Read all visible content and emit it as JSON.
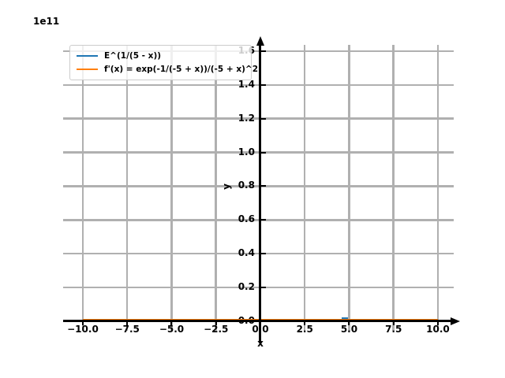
{
  "figure": {
    "offset_label": "1e11",
    "background": "#ffffff"
  },
  "chart_data": {
    "type": "line",
    "title": "",
    "xlabel": "x",
    "ylabel": "y",
    "y_scale_multiplier_label": "1e11",
    "grid": true,
    "grid_color": "#b0b0b0",
    "axis_color": "#000000",
    "axes_style": "centered-spines-with-arrows",
    "xlim": [
      -11.11,
      10.89
    ],
    "ylim_e11": [
      -0.056,
      1.637
    ],
    "xticks": {
      "values": [
        -10.0,
        -7.5,
        -5.0,
        -2.5,
        0.0,
        2.5,
        5.0,
        7.5,
        10.0
      ],
      "labels": [
        "−10.0",
        "−7.5",
        "−5.0",
        "−2.5",
        "0.0",
        "2.5",
        "5.0",
        "7.5",
        "10.0"
      ]
    },
    "yticks": {
      "values_e11": [
        0.0,
        0.2,
        0.4,
        0.6,
        0.8,
        1.0,
        1.2,
        1.4,
        1.6
      ],
      "labels": [
        "0.0",
        "0.2",
        "0.4",
        "0.6",
        "0.8",
        "1.0",
        "1.2",
        "1.4",
        "1.6"
      ]
    },
    "legend": {
      "position": "upper left",
      "entries": [
        {
          "label": "E^(1/(5 - x))",
          "color": "#1f77b4"
        },
        {
          "label": "f'(x) = exp(-1/(-5 + x))/(-5 + x)^2",
          "color": "#ff7f0e"
        }
      ]
    },
    "series": [
      {
        "name": "E^(1/(5 - x))",
        "color": "#1f77b4",
        "x_range": [
          -10,
          10
        ],
        "y_e11_approx": 0,
        "asymptote_x": 5,
        "note": "flat at ~0 on the 1e11 scale; brief blue spike visible just left of x=5"
      },
      {
        "name": "f'(x) = exp(-1/(-5 + x))/(-5 + x)^2",
        "color": "#ff7f0e",
        "x_range": [
          -10,
          10
        ],
        "y_e11_approx": 0,
        "note": "flat at ~0 on the 1e11 scale, drawn over the blue curve"
      }
    ]
  }
}
